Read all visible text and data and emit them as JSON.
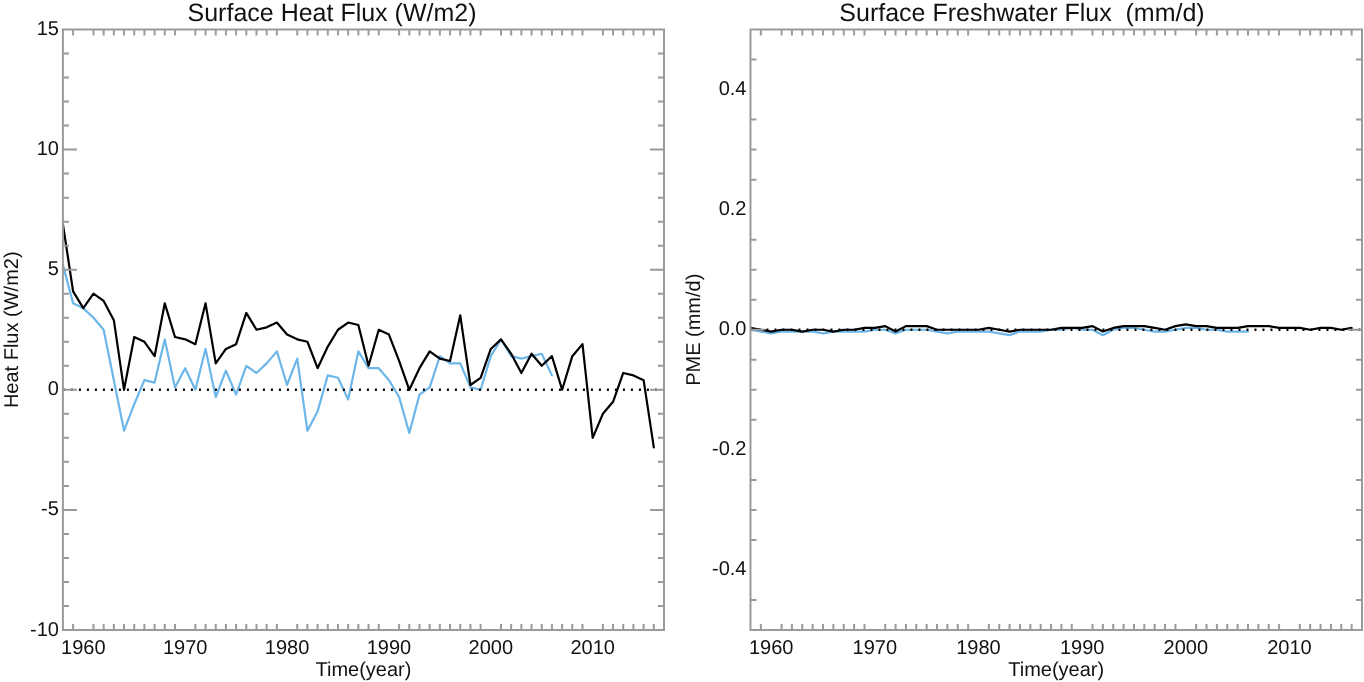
{
  "chart_data": [
    {
      "type": "line",
      "title": "Surface Heat Flux (W/m2)",
      "xlabel": "Time(year)",
      "ylabel": "Heat Flux (W/m2)",
      "xlim": [
        1958,
        2017
      ],
      "xticks": [
        {
          "value": 1959,
          "label": null
        },
        1960,
        {
          "value": 1961,
          "label": null
        },
        {
          "value": 1962,
          "label": null
        },
        {
          "value": 1963,
          "label": null
        },
        {
          "value": 1964,
          "label": null
        },
        {
          "value": 1965,
          "label": null
        },
        {
          "value": 1966,
          "label": null
        },
        {
          "value": 1967,
          "label": null
        },
        {
          "value": 1968,
          "label": null
        },
        {
          "value": 1969,
          "label": null
        },
        1970,
        {
          "value": 1971,
          "label": null
        },
        {
          "value": 1972,
          "label": null
        },
        {
          "value": 1973,
          "label": null
        },
        {
          "value": 1974,
          "label": null
        },
        {
          "value": 1975,
          "label": null
        },
        {
          "value": 1976,
          "label": null
        },
        {
          "value": 1977,
          "label": null
        },
        {
          "value": 1978,
          "label": null
        },
        {
          "value": 1979,
          "label": null
        },
        1980,
        {
          "value": 1981,
          "label": null
        },
        {
          "value": 1982,
          "label": null
        },
        {
          "value": 1983,
          "label": null
        },
        {
          "value": 1984,
          "label": null
        },
        {
          "value": 1985,
          "label": null
        },
        {
          "value": 1986,
          "label": null
        },
        {
          "value": 1987,
          "label": null
        },
        {
          "value": 1988,
          "label": null
        },
        {
          "value": 1989,
          "label": null
        },
        1990,
        {
          "value": 1991,
          "label": null
        },
        {
          "value": 1992,
          "label": null
        },
        {
          "value": 1993,
          "label": null
        },
        {
          "value": 1994,
          "label": null
        },
        {
          "value": 1995,
          "label": null
        },
        {
          "value": 1996,
          "label": null
        },
        {
          "value": 1997,
          "label": null
        },
        {
          "value": 1998,
          "label": null
        },
        {
          "value": 1999,
          "label": null
        },
        2000,
        {
          "value": 2001,
          "label": null
        },
        {
          "value": 2002,
          "label": null
        },
        {
          "value": 2003,
          "label": null
        },
        {
          "value": 2004,
          "label": null
        },
        {
          "value": 2005,
          "label": null
        },
        {
          "value": 2006,
          "label": null
        },
        {
          "value": 2007,
          "label": null
        },
        {
          "value": 2008,
          "label": null
        },
        {
          "value": 2009,
          "label": null
        },
        2010,
        {
          "value": 2011,
          "label": null
        },
        {
          "value": 2012,
          "label": null
        },
        {
          "value": 2013,
          "label": null
        },
        {
          "value": 2014,
          "label": null
        },
        {
          "value": 2015,
          "label": null
        },
        {
          "value": 2016,
          "label": null
        }
      ],
      "ylim": [
        -10,
        15
      ],
      "yticks": [
        -10,
        {
          "value": -9,
          "label": null
        },
        {
          "value": -8,
          "label": null
        },
        {
          "value": -7,
          "label": null
        },
        {
          "value": -6,
          "label": null
        },
        -5,
        {
          "value": -4,
          "label": null
        },
        {
          "value": -3,
          "label": null
        },
        {
          "value": -2,
          "label": null
        },
        {
          "value": -1,
          "label": null
        },
        0,
        {
          "value": 1,
          "label": null
        },
        {
          "value": 2,
          "label": null
        },
        {
          "value": 3,
          "label": null
        },
        {
          "value": 4,
          "label": null
        },
        5,
        {
          "value": 6,
          "label": null
        },
        {
          "value": 7,
          "label": null
        },
        {
          "value": 8,
          "label": null
        },
        {
          "value": 9,
          "label": null
        },
        10,
        {
          "value": 11,
          "label": null
        },
        {
          "value": 12,
          "label": null
        },
        {
          "value": 13,
          "label": null
        },
        {
          "value": 14,
          "label": null
        },
        15
      ],
      "x": [
        1958,
        1959,
        1960,
        1961,
        1962,
        1963,
        1964,
        1965,
        1966,
        1967,
        1968,
        1969,
        1970,
        1971,
        1972,
        1973,
        1974,
        1975,
        1976,
        1977,
        1978,
        1979,
        1980,
        1981,
        1982,
        1983,
        1984,
        1985,
        1986,
        1987,
        1988,
        1989,
        1990,
        1991,
        1992,
        1993,
        1994,
        1995,
        1996,
        1997,
        1998,
        1999,
        2000,
        2001,
        2002,
        2003,
        2004,
        2005,
        2006,
        2007,
        2008,
        2009,
        2010,
        2011,
        2012,
        2013,
        2014,
        2015,
        2016
      ],
      "series": [
        {
          "color": "#000000",
          "values": [
            6.9,
            4.1,
            3.4,
            4.0,
            3.7,
            2.9,
            0.0,
            2.2,
            2.0,
            1.4,
            3.6,
            2.2,
            2.1,
            1.9,
            3.6,
            1.1,
            1.7,
            1.9,
            3.2,
            2.5,
            2.6,
            2.8,
            2.3,
            2.1,
            2.0,
            0.9,
            1.8,
            2.5,
            2.8,
            2.7,
            1.0,
            2.5,
            2.3,
            1.2,
            0.0,
            0.9,
            1.6,
            1.3,
            1.2,
            3.1,
            0.2,
            0.5,
            1.7,
            2.1,
            1.5,
            0.7,
            1.5,
            1.0,
            1.4,
            0.0,
            1.4,
            1.9,
            -2.0,
            -1.0,
            -0.5,
            0.7,
            0.6,
            0.4,
            -2.4
          ]
        },
        {
          "color": "#6cb6e8",
          "values": [
            5.2,
            3.6,
            3.4,
            3.0,
            2.5,
            0.4,
            -1.7,
            -0.6,
            0.4,
            0.3,
            2.1,
            0.1,
            0.9,
            0.0,
            1.7,
            -0.3,
            0.8,
            -0.2,
            1.0,
            0.7,
            1.1,
            1.6,
            0.2,
            1.3,
            -1.7,
            -0.9,
            0.6,
            0.5,
            -0.4,
            1.6,
            0.9,
            0.9,
            0.4,
            -0.3,
            -1.8,
            -0.2,
            0.1,
            1.4,
            1.1,
            1.1,
            0.1,
            0.0,
            1.4,
            2.1,
            1.4,
            1.3,
            1.4,
            1.5,
            0.6,
            null,
            null,
            null,
            null,
            null,
            null,
            null,
            null,
            null,
            null
          ]
        }
      ],
      "ref_lines": [
        {
          "axis": "y",
          "value": 0,
          "color": "#000000",
          "line_style": "dotted"
        }
      ]
    },
    {
      "type": "line",
      "title": "Surface Freshwater Flux  (mm/d)",
      "xlabel": "Time(year)",
      "ylabel": "PME (mm/d)",
      "xlim": [
        1958,
        2017
      ],
      "xticks": [
        {
          "value": 1959,
          "label": null
        },
        1960,
        {
          "value": 1961,
          "label": null
        },
        {
          "value": 1962,
          "label": null
        },
        {
          "value": 1963,
          "label": null
        },
        {
          "value": 1964,
          "label": null
        },
        {
          "value": 1965,
          "label": null
        },
        {
          "value": 1966,
          "label": null
        },
        {
          "value": 1967,
          "label": null
        },
        {
          "value": 1968,
          "label": null
        },
        {
          "value": 1969,
          "label": null
        },
        1970,
        {
          "value": 1971,
          "label": null
        },
        {
          "value": 1972,
          "label": null
        },
        {
          "value": 1973,
          "label": null
        },
        {
          "value": 1974,
          "label": null
        },
        {
          "value": 1975,
          "label": null
        },
        {
          "value": 1976,
          "label": null
        },
        {
          "value": 1977,
          "label": null
        },
        {
          "value": 1978,
          "label": null
        },
        {
          "value": 1979,
          "label": null
        },
        1980,
        {
          "value": 1981,
          "label": null
        },
        {
          "value": 1982,
          "label": null
        },
        {
          "value": 1983,
          "label": null
        },
        {
          "value": 1984,
          "label": null
        },
        {
          "value": 1985,
          "label": null
        },
        {
          "value": 1986,
          "label": null
        },
        {
          "value": 1987,
          "label": null
        },
        {
          "value": 1988,
          "label": null
        },
        {
          "value": 1989,
          "label": null
        },
        1990,
        {
          "value": 1991,
          "label": null
        },
        {
          "value": 1992,
          "label": null
        },
        {
          "value": 1993,
          "label": null
        },
        {
          "value": 1994,
          "label": null
        },
        {
          "value": 1995,
          "label": null
        },
        {
          "value": 1996,
          "label": null
        },
        {
          "value": 1997,
          "label": null
        },
        {
          "value": 1998,
          "label": null
        },
        {
          "value": 1999,
          "label": null
        },
        2000,
        {
          "value": 2001,
          "label": null
        },
        {
          "value": 2002,
          "label": null
        },
        {
          "value": 2003,
          "label": null
        },
        {
          "value": 2004,
          "label": null
        },
        {
          "value": 2005,
          "label": null
        },
        {
          "value": 2006,
          "label": null
        },
        {
          "value": 2007,
          "label": null
        },
        {
          "value": 2008,
          "label": null
        },
        {
          "value": 2009,
          "label": null
        },
        2010,
        {
          "value": 2011,
          "label": null
        },
        {
          "value": 2012,
          "label": null
        },
        {
          "value": 2013,
          "label": null
        },
        {
          "value": 2014,
          "label": null
        },
        {
          "value": 2015,
          "label": null
        },
        {
          "value": 2016,
          "label": null
        }
      ],
      "ylim": [
        -0.5,
        0.5
      ],
      "yticks": [
        {
          "value": -0.45,
          "label": null
        },
        -0.4,
        {
          "value": -0.35,
          "label": null
        },
        {
          "value": -0.3,
          "label": null
        },
        {
          "value": -0.25,
          "label": null
        },
        -0.2,
        {
          "value": -0.15,
          "label": null
        },
        {
          "value": -0.1,
          "label": null
        },
        {
          "value": -0.05,
          "label": null
        },
        {
          "value": 0,
          "label": "0.0"
        },
        {
          "value": 0.05,
          "label": null
        },
        {
          "value": 0.1,
          "label": null
        },
        {
          "value": 0.15,
          "label": null
        },
        0.2,
        {
          "value": 0.25,
          "label": null
        },
        {
          "value": 0.3,
          "label": null
        },
        {
          "value": 0.35,
          "label": null
        },
        0.4,
        {
          "value": 0.45,
          "label": null
        }
      ],
      "x": [
        1958,
        1959,
        1960,
        1961,
        1962,
        1963,
        1964,
        1965,
        1966,
        1967,
        1968,
        1969,
        1970,
        1971,
        1972,
        1973,
        1974,
        1975,
        1976,
        1977,
        1978,
        1979,
        1980,
        1981,
        1982,
        1983,
        1984,
        1985,
        1986,
        1987,
        1988,
        1989,
        1990,
        1991,
        1992,
        1993,
        1994,
        1995,
        1996,
        1997,
        1998,
        1999,
        2000,
        2001,
        2002,
        2003,
        2004,
        2005,
        2006,
        2007,
        2008,
        2009,
        2010,
        2011,
        2012,
        2013,
        2014,
        2015,
        2016
      ],
      "series": [
        {
          "color": "#000000",
          "values": [
            0.003,
            0.0,
            -0.003,
            0.0,
            0.0,
            -0.003,
            0.0,
            0.0,
            -0.003,
            0.0,
            0.0,
            0.003,
            0.003,
            0.006,
            -0.003,
            0.006,
            0.006,
            0.006,
            0.0,
            0.0,
            0.0,
            0.0,
            0.0,
            0.003,
            0.0,
            -0.003,
            0.0,
            0.0,
            0.0,
            0.0,
            0.003,
            0.003,
            0.003,
            0.006,
            -0.003,
            0.003,
            0.006,
            0.006,
            0.006,
            0.003,
            0.0,
            0.006,
            0.009,
            0.006,
            0.006,
            0.003,
            0.003,
            0.003,
            0.006,
            0.006,
            0.006,
            0.003,
            0.003,
            0.003,
            0.0,
            0.003,
            0.003,
            0.0,
            0.003
          ]
        },
        {
          "color": "#6cb6e8",
          "values": [
            0.0,
            -0.003,
            -0.006,
            -0.003,
            -0.003,
            -0.003,
            -0.003,
            -0.006,
            -0.003,
            -0.003,
            -0.003,
            -0.003,
            0.0,
            0.0,
            -0.006,
            0.0,
            0.0,
            0.0,
            -0.003,
            -0.006,
            -0.003,
            -0.003,
            -0.003,
            -0.003,
            -0.006,
            -0.009,
            -0.003,
            -0.003,
            -0.003,
            0.0,
            0.0,
            0.003,
            0.0,
            0.0,
            -0.009,
            0.0,
            0.003,
            0.003,
            0.0,
            -0.003,
            -0.003,
            0.0,
            0.003,
            0.003,
            0.0,
            0.0,
            -0.003,
            -0.003,
            -0.003,
            null,
            null,
            null,
            null,
            null,
            null,
            null,
            null,
            null,
            null
          ]
        }
      ],
      "ref_lines": [
        {
          "axis": "y",
          "value": 0,
          "color": "#000000",
          "line_style": "dotted"
        }
      ]
    }
  ]
}
